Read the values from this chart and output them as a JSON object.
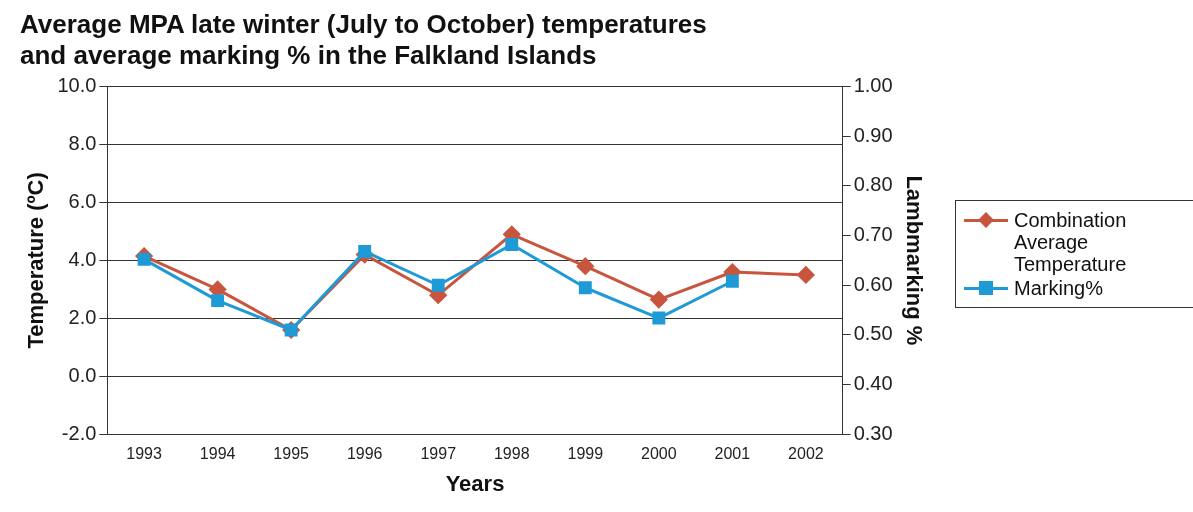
{
  "chart_data": {
    "type": "line",
    "title": [
      "Average MPA late winter (July to October) temperatures",
      "and average marking % in the Falkland Islands"
    ],
    "xlabel": "Years",
    "ylabel": "Temperature (ºC)",
    "y2label": "Lambmarking %",
    "categories": [
      "1993",
      "1994",
      "1995",
      "1996",
      "1997",
      "1998",
      "1999",
      "2000",
      "2001",
      "2002"
    ],
    "series": [
      {
        "name": "Combination Average Temperature",
        "color": "#c8553d",
        "marker": "diamond",
        "values": [
          4.15,
          3.0,
          1.6,
          4.2,
          2.8,
          4.9,
          3.8,
          2.65,
          3.6,
          3.5
        ]
      },
      {
        "name": "Marking%",
        "color": "#1e9ad6",
        "marker": "square",
        "axis": "y2",
        "values": [
          0.652,
          0.569,
          0.51,
          0.668,
          0.6,
          0.682,
          0.595,
          0.534,
          0.608,
          null
        ]
      }
    ],
    "ylim": [
      -2,
      10
    ],
    "yticks": [
      {
        "value": -2,
        "label": "-2.0"
      },
      {
        "value": 0,
        "label": "0.0"
      },
      {
        "value": 2,
        "label": "2.0"
      },
      {
        "value": 4,
        "label": "4.0"
      },
      {
        "value": 6,
        "label": "6.0"
      },
      {
        "value": 8,
        "label": "8.0"
      },
      {
        "value": 10,
        "label": "10.0"
      }
    ],
    "y2lim": [
      0.3,
      1.0
    ],
    "y2ticks": [
      {
        "value": 0.3,
        "label": "0.30"
      },
      {
        "value": 0.4,
        "label": "0.40"
      },
      {
        "value": 0.5,
        "label": "0.50"
      },
      {
        "value": 0.6,
        "label": "0.60"
      },
      {
        "value": 0.7,
        "label": "0.70"
      },
      {
        "value": 0.8,
        "label": "0.80"
      },
      {
        "value": 0.9,
        "label": "0.90"
      },
      {
        "value": 1.0,
        "label": "1.00"
      }
    ],
    "grid": "y",
    "legend": "right",
    "line_style": "solid"
  }
}
